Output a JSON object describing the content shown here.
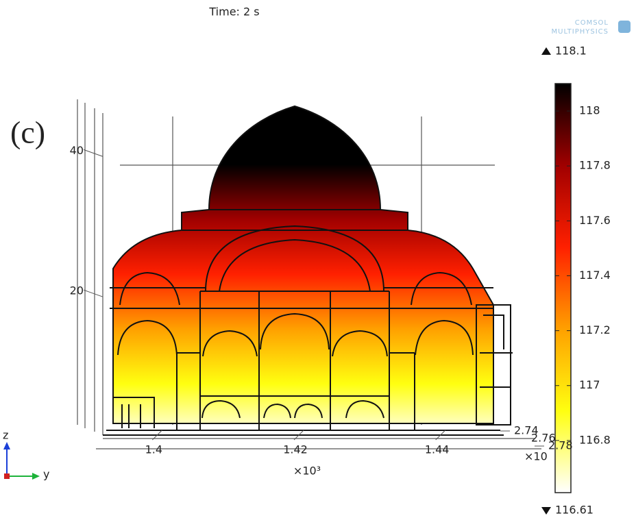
{
  "chart_data": {
    "type": "surface3d",
    "title": "Time: 2 s",
    "panel_label": "(c)",
    "logo": [
      "COMSOL",
      "MULTIPHYSICS"
    ],
    "zlim": [
      0,
      50
    ],
    "zticks": [
      20,
      40
    ],
    "ylim": [
      1.39,
      1.45
    ],
    "yticks": [
      1.4,
      1.42,
      1.44
    ],
    "y_multiplier": "×10³",
    "xlim": [
      2.72,
      2.8
    ],
    "xticks": [
      2.74,
      2.76,
      2.78
    ],
    "x_multiplier": "×10",
    "triad": [
      "z",
      "y"
    ],
    "colorbar": {
      "clim": [
        116.61,
        118.1
      ],
      "ticks": [
        116.8,
        117,
        117.2,
        117.4,
        117.6,
        117.8,
        118
      ],
      "colors": [
        "#ffffff",
        "#ffff10",
        "#ffa000",
        "#ff2000",
        "#a00000",
        "#000000"
      ]
    }
  }
}
